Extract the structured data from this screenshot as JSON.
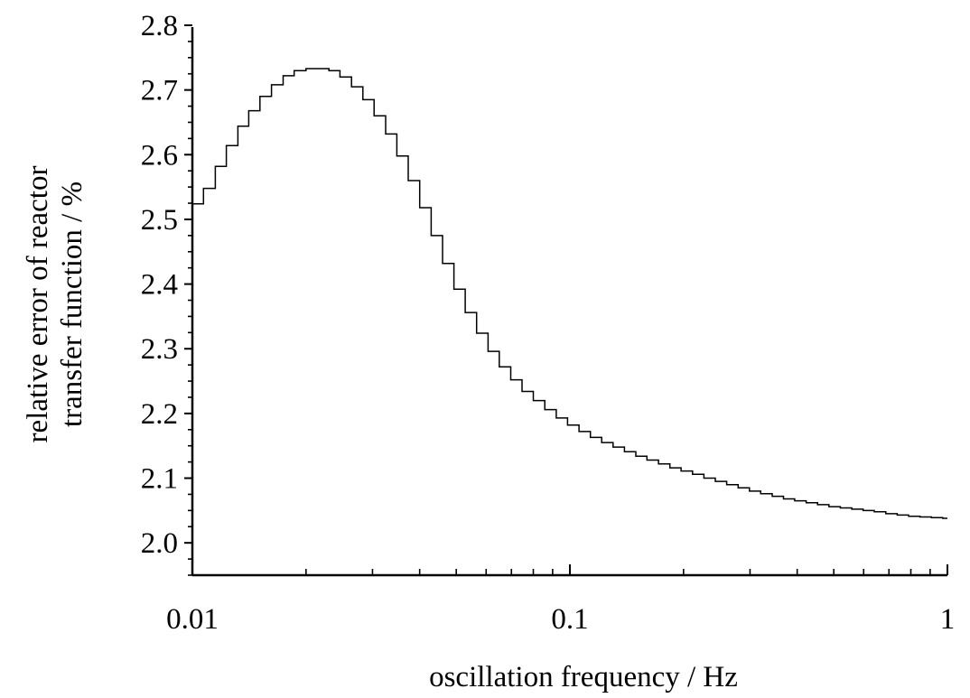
{
  "chart_data": {
    "type": "line",
    "xlabel": "oscillation frequency / Hz",
    "ylabel_lines": [
      "relative error of reactor",
      "transfer function / %"
    ],
    "x_scale": "log",
    "xlim": [
      0.01,
      1
    ],
    "ylim": [
      1.95,
      2.8
    ],
    "x_ticks": [
      0.01,
      0.1,
      1
    ],
    "x_tick_labels": [
      "0.01",
      "0.1",
      "1"
    ],
    "y_ticks": [
      2.0,
      2.1,
      2.2,
      2.3,
      2.4,
      2.5,
      2.6,
      2.7,
      2.8
    ],
    "y_tick_labels": [
      "2.0",
      "2.1",
      "2.2",
      "2.3",
      "2.4",
      "2.5",
      "2.6",
      "2.7",
      "2.8"
    ],
    "grid": false,
    "series": [
      {
        "x": [
          0.01,
          0.0107,
          0.0115,
          0.0123,
          0.0132,
          0.0141,
          0.0151,
          0.0162,
          0.0174,
          0.0186,
          0.02,
          0.0214,
          0.023,
          0.0246,
          0.0264,
          0.0283,
          0.0303,
          0.0325,
          0.0348,
          0.0373,
          0.04,
          0.0429,
          0.046,
          0.0493,
          0.0528,
          0.0566,
          0.0607,
          0.065,
          0.0697,
          0.0747,
          0.08,
          0.0858,
          0.092,
          0.0986,
          0.1057,
          0.1133,
          0.1214,
          0.1301,
          0.1395,
          0.1495,
          0.16,
          0.1717,
          0.184,
          0.197,
          0.2113,
          0.2265,
          0.2428,
          0.2602,
          0.279,
          0.299,
          0.32,
          0.3435,
          0.368,
          0.394,
          0.4225,
          0.453,
          0.4855,
          0.5203,
          0.558,
          0.598,
          0.64,
          0.687,
          0.736,
          0.789,
          0.846,
          0.907,
          0.972,
          1.0
        ],
        "y": [
          2.524,
          2.548,
          2.582,
          2.614,
          2.644,
          2.668,
          2.69,
          2.708,
          2.722,
          2.73,
          2.733,
          2.733,
          2.73,
          2.72,
          2.705,
          2.685,
          2.66,
          2.632,
          2.598,
          2.56,
          2.518,
          2.475,
          2.432,
          2.392,
          2.356,
          2.324,
          2.296,
          2.272,
          2.252,
          2.234,
          2.22,
          2.206,
          2.193,
          2.182,
          2.172,
          2.163,
          2.155,
          2.148,
          2.141,
          2.134,
          2.128,
          2.122,
          2.116,
          2.111,
          2.106,
          2.1,
          2.095,
          2.09,
          2.085,
          2.08,
          2.076,
          2.072,
          2.068,
          2.065,
          2.062,
          2.059,
          2.056,
          2.054,
          2.052,
          2.05,
          2.048,
          2.045,
          2.043,
          2.041,
          2.04,
          2.039,
          2.038,
          2.038
        ]
      }
    ]
  }
}
